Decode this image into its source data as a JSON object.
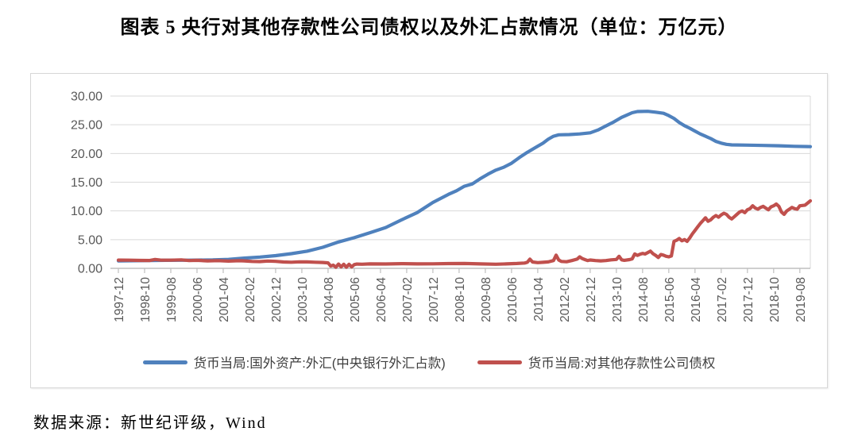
{
  "header": {
    "title": "图表 5  央行对其他存款性公司债权以及外汇占款情况（单位：万亿元）"
  },
  "source_note": "数据来源：新世纪评级，Wind",
  "chart_data": {
    "type": "line",
    "title": "图表 5  央行对其他存款性公司债权以及外汇占款情况（单位：万亿元）",
    "unit": "万亿元",
    "xlabel": "",
    "ylabel": "",
    "grid": true,
    "legend_position": "bottom",
    "y_axis": {
      "min": 0,
      "max": 30,
      "tick_interval": 5,
      "tick_labels": [
        "0.00",
        "5.00",
        "10.00",
        "15.00",
        "20.00",
        "25.00",
        "30.00"
      ]
    },
    "x_axis": {
      "frequency": "monthly",
      "start": "1997-12",
      "end": "2019-12",
      "months_per_tick": 10,
      "tick_labels": [
        "1997-12",
        "1998-10",
        "1999-08",
        "2000-06",
        "2001-04",
        "2002-02",
        "2002-12",
        "2003-10",
        "2004-08",
        "2005-06",
        "2006-04",
        "2007-02",
        "2007-12",
        "2008-10",
        "2009-08",
        "2010-06",
        "2011-04",
        "2012-02",
        "2012-12",
        "2013-10",
        "2014-08",
        "2015-06",
        "2016-04",
        "2017-02",
        "2017-12",
        "2018-10",
        "2019-08"
      ]
    },
    "colors": {
      "fx_series": "#4f81bd",
      "claims_series": "#c0504d",
      "gridline": "#d9d9d9",
      "axis_line": "#bfbfbf",
      "tick_text": "#595959"
    },
    "series": [
      {
        "name": "货币当局:国外资产:外汇(中央银行外汇占款)",
        "color": "#4f81bd",
        "points_note": "[months since 1997-12, value in 万亿元]",
        "points": [
          [
            0,
            1.3
          ],
          [
            6,
            1.33
          ],
          [
            12,
            1.37
          ],
          [
            18,
            1.39
          ],
          [
            24,
            1.41
          ],
          [
            30,
            1.44
          ],
          [
            36,
            1.47
          ],
          [
            42,
            1.56
          ],
          [
            48,
            1.78
          ],
          [
            54,
            1.96
          ],
          [
            60,
            2.21
          ],
          [
            66,
            2.56
          ],
          [
            72,
            2.98
          ],
          [
            78,
            3.66
          ],
          [
            84,
            4.59
          ],
          [
            90,
            5.33
          ],
          [
            96,
            6.21
          ],
          [
            102,
            7.1
          ],
          [
            108,
            8.44
          ],
          [
            114,
            9.7
          ],
          [
            120,
            11.47
          ],
          [
            126,
            12.9
          ],
          [
            129,
            13.5
          ],
          [
            132,
            14.3
          ],
          [
            135,
            14.7
          ],
          [
            138,
            15.6
          ],
          [
            141,
            16.4
          ],
          [
            144,
            17.1
          ],
          [
            147,
            17.6
          ],
          [
            150,
            18.3
          ],
          [
            153,
            19.3
          ],
          [
            156,
            20.2
          ],
          [
            159,
            21.0
          ],
          [
            162,
            21.8
          ],
          [
            164,
            22.5
          ],
          [
            166,
            23.0
          ],
          [
            168,
            23.25
          ],
          [
            172,
            23.3
          ],
          [
            176,
            23.4
          ],
          [
            180,
            23.6
          ],
          [
            183,
            24.1
          ],
          [
            186,
            24.8
          ],
          [
            189,
            25.5
          ],
          [
            192,
            26.3
          ],
          [
            194,
            26.7
          ],
          [
            196,
            27.1
          ],
          [
            198,
            27.3
          ],
          [
            202,
            27.35
          ],
          [
            205,
            27.2
          ],
          [
            208,
            27.0
          ],
          [
            210,
            26.6
          ],
          [
            212,
            26.1
          ],
          [
            214,
            25.4
          ],
          [
            216,
            24.85
          ],
          [
            218,
            24.4
          ],
          [
            220,
            23.9
          ],
          [
            222,
            23.4
          ],
          [
            224,
            23.0
          ],
          [
            226,
            22.6
          ],
          [
            228,
            22.1
          ],
          [
            230,
            21.8
          ],
          [
            232,
            21.6
          ],
          [
            234,
            21.5
          ],
          [
            240,
            21.45
          ],
          [
            246,
            21.4
          ],
          [
            252,
            21.35
          ],
          [
            258,
            21.25
          ],
          [
            264,
            21.2
          ]
        ]
      },
      {
        "name": "货币当局:对其他存款性公司债权",
        "color": "#c0504d",
        "points_note": "[months since 1997-12, value in 万亿元]",
        "points": [
          [
            0,
            1.44
          ],
          [
            4,
            1.42
          ],
          [
            8,
            1.38
          ],
          [
            12,
            1.37
          ],
          [
            14,
            1.55
          ],
          [
            16,
            1.44
          ],
          [
            20,
            1.42
          ],
          [
            24,
            1.48
          ],
          [
            27,
            1.36
          ],
          [
            30,
            1.4
          ],
          [
            34,
            1.3
          ],
          [
            38,
            1.34
          ],
          [
            42,
            1.26
          ],
          [
            46,
            1.33
          ],
          [
            48,
            1.3
          ],
          [
            51,
            1.2
          ],
          [
            54,
            1.17
          ],
          [
            57,
            1.27
          ],
          [
            60,
            1.22
          ],
          [
            63,
            1.1
          ],
          [
            66,
            1.07
          ],
          [
            69,
            1.14
          ],
          [
            72,
            1.12
          ],
          [
            75,
            1.06
          ],
          [
            78,
            1.02
          ],
          [
            80,
            0.95
          ],
          [
            81,
            0.4
          ],
          [
            82,
            0.55
          ],
          [
            83,
            0.2
          ],
          [
            84,
            0.75
          ],
          [
            85,
            0.25
          ],
          [
            86,
            0.7
          ],
          [
            87,
            0.2
          ],
          [
            88,
            0.7
          ],
          [
            89,
            0.25
          ],
          [
            90,
            0.65
          ],
          [
            91,
            0.75
          ],
          [
            93,
            0.72
          ],
          [
            96,
            0.78
          ],
          [
            102,
            0.76
          ],
          [
            108,
            0.82
          ],
          [
            114,
            0.78
          ],
          [
            120,
            0.79
          ],
          [
            126,
            0.83
          ],
          [
            132,
            0.84
          ],
          [
            138,
            0.78
          ],
          [
            144,
            0.72
          ],
          [
            148,
            0.78
          ],
          [
            152,
            0.85
          ],
          [
            155,
            0.92
          ],
          [
            156,
            1.05
          ],
          [
            157,
            1.6
          ],
          [
            158,
            1.1
          ],
          [
            160,
            1.0
          ],
          [
            162,
            1.05
          ],
          [
            164,
            1.12
          ],
          [
            166,
            1.35
          ],
          [
            167,
            2.3
          ],
          [
            168,
            1.45
          ],
          [
            169,
            1.2
          ],
          [
            171,
            1.15
          ],
          [
            173,
            1.35
          ],
          [
            175,
            1.6
          ],
          [
            176,
            2.0
          ],
          [
            177,
            1.7
          ],
          [
            178,
            1.52
          ],
          [
            179,
            1.35
          ],
          [
            180,
            1.45
          ],
          [
            182,
            1.35
          ],
          [
            184,
            1.3
          ],
          [
            186,
            1.36
          ],
          [
            188,
            1.48
          ],
          [
            190,
            1.55
          ],
          [
            191,
            2.1
          ],
          [
            192,
            1.48
          ],
          [
            193,
            1.4
          ],
          [
            195,
            1.52
          ],
          [
            196,
            1.65
          ],
          [
            197,
            2.5
          ],
          [
            198,
            2.25
          ],
          [
            199,
            2.45
          ],
          [
            200,
            2.6
          ],
          [
            201,
            2.5
          ],
          [
            202,
            2.75
          ],
          [
            203,
            3.0
          ],
          [
            204,
            2.55
          ],
          [
            205,
            2.25
          ],
          [
            206,
            1.9
          ],
          [
            207,
            2.4
          ],
          [
            208,
            2.3
          ],
          [
            209,
            2.1
          ],
          [
            210,
            2.0
          ],
          [
            211,
            2.15
          ],
          [
            212,
            4.7
          ],
          [
            213,
            4.9
          ],
          [
            214,
            5.2
          ],
          [
            215,
            4.8
          ],
          [
            216,
            5.0
          ],
          [
            217,
            4.7
          ],
          [
            218,
            5.3
          ],
          [
            219,
            6.0
          ],
          [
            220,
            6.6
          ],
          [
            221,
            7.2
          ],
          [
            222,
            7.8
          ],
          [
            223,
            8.3
          ],
          [
            224,
            8.8
          ],
          [
            225,
            8.2
          ],
          [
            226,
            8.45
          ],
          [
            227,
            8.9
          ],
          [
            228,
            9.2
          ],
          [
            229,
            8.9
          ],
          [
            230,
            9.3
          ],
          [
            231,
            9.6
          ],
          [
            232,
            9.4
          ],
          [
            233,
            8.9
          ],
          [
            234,
            8.6
          ],
          [
            235,
            9.0
          ],
          [
            236,
            9.4
          ],
          [
            237,
            9.8
          ],
          [
            238,
            10.0
          ],
          [
            239,
            9.7
          ],
          [
            240,
            10.2
          ],
          [
            241,
            10.4
          ],
          [
            242,
            10.9
          ],
          [
            243,
            10.5
          ],
          [
            244,
            10.3
          ],
          [
            245,
            10.6
          ],
          [
            246,
            10.8
          ],
          [
            247,
            10.5
          ],
          [
            248,
            10.2
          ],
          [
            249,
            10.7
          ],
          [
            250,
            10.9
          ],
          [
            251,
            11.2
          ],
          [
            252,
            10.8
          ],
          [
            253,
            9.8
          ],
          [
            254,
            9.4
          ],
          [
            255,
            10.0
          ],
          [
            256,
            10.3
          ],
          [
            257,
            10.6
          ],
          [
            258,
            10.4
          ],
          [
            259,
            10.3
          ],
          [
            260,
            10.9
          ],
          [
            262,
            11.0
          ],
          [
            264,
            11.75
          ]
        ]
      }
    ]
  }
}
